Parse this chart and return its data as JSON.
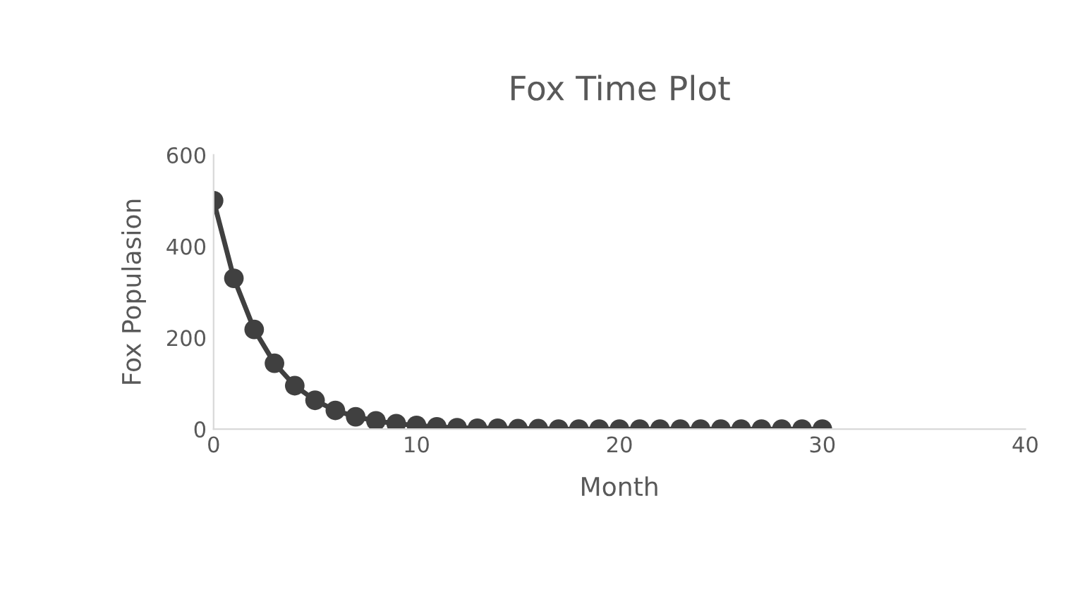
{
  "chart_data": {
    "type": "line",
    "title": "Fox Time Plot",
    "xlabel": "Month",
    "ylabel": "Fox Populasion",
    "x": [
      0,
      1,
      2,
      3,
      4,
      5,
      6,
      7,
      8,
      9,
      10,
      11,
      12,
      13,
      14,
      15,
      16,
      17,
      18,
      19,
      20,
      21,
      22,
      23,
      24,
      25,
      26,
      27,
      28,
      29,
      30
    ],
    "series": [
      {
        "color": "#404040",
        "values": [
          500,
          330,
          218,
          144,
          95,
          63,
          41,
          27,
          18,
          12,
          8,
          5,
          3,
          2,
          2,
          1,
          1,
          0,
          0,
          0,
          0,
          0,
          0,
          0,
          0,
          0,
          0,
          0,
          0,
          0,
          0
        ]
      }
    ],
    "xlim": [
      0,
      40
    ],
    "xticks": [
      0,
      10,
      20,
      30,
      40
    ],
    "ylim": [
      0,
      600
    ],
    "yticks": [
      0,
      200,
      400,
      600
    ],
    "grid": false,
    "legend": false,
    "marker": "circle",
    "line_style": "solid"
  }
}
